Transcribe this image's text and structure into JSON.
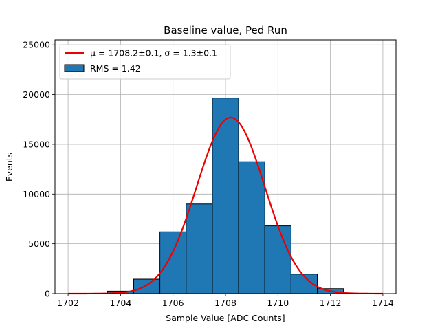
{
  "chart_data": {
    "type": "bar",
    "title": "Baseline value, Ped Run",
    "xlabel": "Sample Value [ADC Counts]",
    "ylabel": "Events",
    "xlim": [
      1701.5,
      1714.5
    ],
    "ylim": [
      0,
      25500
    ],
    "xticks": [
      1702,
      1704,
      1706,
      1708,
      1710,
      1712,
      1714
    ],
    "yticks": [
      0,
      5000,
      10000,
      15000,
      20000,
      25000
    ],
    "grid": true,
    "legend_position": "top-left",
    "histogram": {
      "name": "RMS = 1.42",
      "color": "#1f77b4",
      "edgecolor": "#000000",
      "bin_edges": [
        1703.5,
        1704.5,
        1705.5,
        1706.5,
        1707.5,
        1708.5,
        1709.5,
        1710.5,
        1711.5,
        1712.5
      ],
      "values": [
        250,
        1450,
        6200,
        9000,
        19650,
        13250,
        6800,
        1950,
        500
      ]
    },
    "fit": {
      "name": "μ = 1708.2±0.1, σ = 1.3±0.1",
      "color": "#ee0000",
      "mu": 1708.2,
      "sigma": 1.3,
      "amplitude": 17700,
      "x_range": [
        1702,
        1714
      ]
    }
  }
}
